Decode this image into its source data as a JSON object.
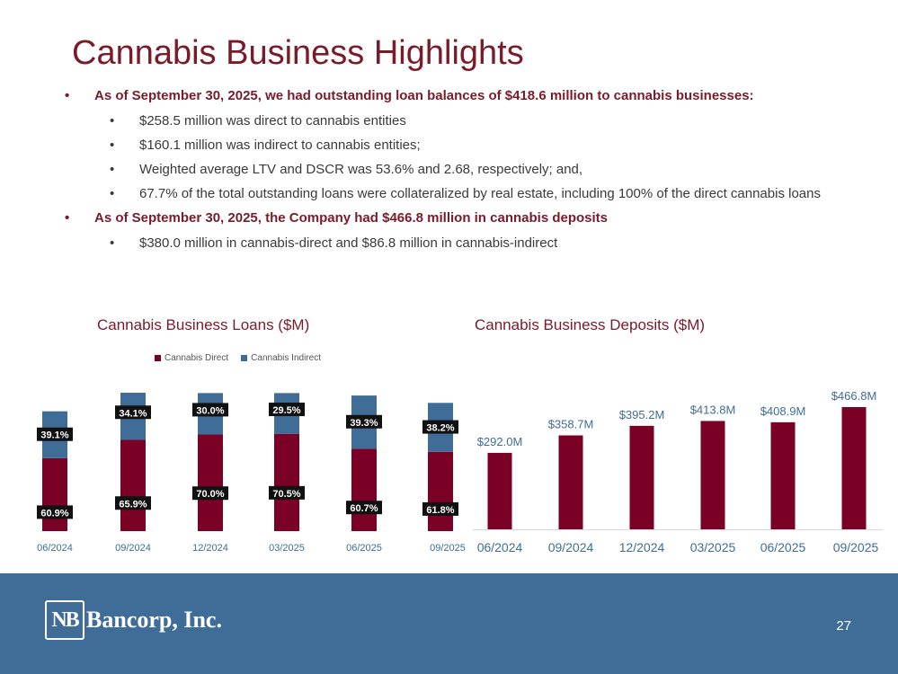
{
  "slide": {
    "title": "Cannabis Business Highlights",
    "page_number": "27"
  },
  "bullets": [
    {
      "text": "As of September 30, 2025, we had outstanding loan balances of $418.6 million to cannabis businesses:"
    },
    {
      "text": "$258.5 million was direct to cannabis entities"
    },
    {
      "text": "$160.1 million was indirect to cannabis entities;"
    },
    {
      "text": "Weighted average LTV and DSCR was 53.6% and 2.68, respectively; and,"
    },
    {
      "text": "67.7% of the total outstanding loans were collateralized by real estate, including 100% of the direct cannabis loans"
    },
    {
      "text": "As of September 30, 2025, the Company had $466.8 million in cannabis deposits"
    },
    {
      "text": "$380.0 million in cannabis-direct and $86.8 million in cannabis-indirect"
    }
  ],
  "footer": {
    "logo_mark": "NB",
    "company": "Bancorp, Inc."
  },
  "colors": {
    "maroon": "#7a0026",
    "blue": "#3f6d97",
    "title": "#7a1b2a"
  },
  "chart_data": [
    {
      "type": "bar",
      "stacked": true,
      "percent": true,
      "title": "Cannabis Business Loans ($M)",
      "categories": [
        "06/2024",
        "09/2024",
        "12/2024",
        "03/2025",
        "06/2025",
        "09/2025"
      ],
      "series": [
        {
          "name": "Cannabis Direct",
          "values": [
            60.9,
            65.9,
            70.0,
            70.5,
            60.7,
            61.8
          ],
          "labels": [
            "60.9%",
            "65.9%",
            "70.0%",
            "70.5%",
            "60.7%",
            "61.8%"
          ]
        },
        {
          "name": "Cannabis Indirect",
          "values": [
            39.1,
            34.1,
            30.0,
            29.5,
            39.3,
            38.2
          ],
          "labels": [
            "39.1%",
            "34.1%",
            "30.0%",
            "29.5%",
            "39.3%",
            "38.2%"
          ]
        }
      ],
      "relative_totals": [
        342,
        395,
        394,
        394,
        387,
        366
      ],
      "legend": "top"
    },
    {
      "type": "bar",
      "title": "Cannabis Business Deposits ($M)",
      "categories": [
        "06/2024",
        "09/2024",
        "12/2024",
        "03/2025",
        "06/2025",
        "09/2025"
      ],
      "values": [
        292.0,
        358.7,
        395.2,
        413.8,
        408.9,
        466.8
      ],
      "labels": [
        "$292.0M",
        "$358.7M",
        "$395.2M",
        "$413.8M",
        "$408.9M",
        "$466.8M"
      ]
    }
  ]
}
